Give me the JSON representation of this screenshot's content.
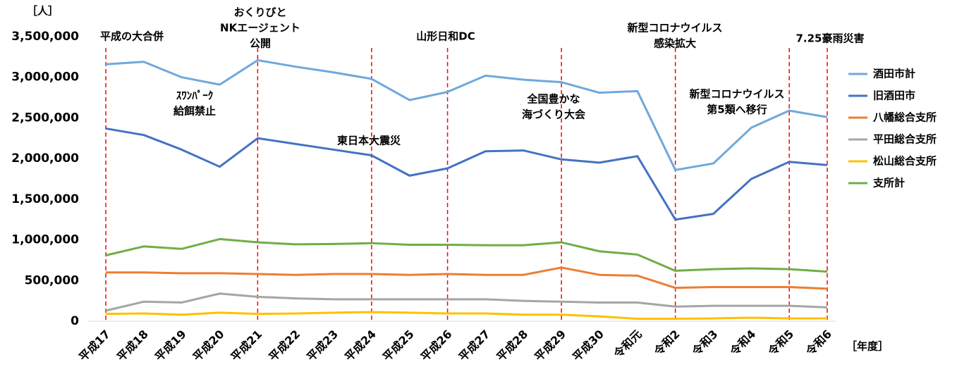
{
  "chart_data": {
    "type": "line",
    "y_axis_label": "［人］",
    "x_axis_label": "［年度］",
    "categories": [
      "平成17",
      "平成18",
      "平成19",
      "平成20",
      "平成21",
      "平成22",
      "平成23",
      "平成24",
      "平成25",
      "平成26",
      "平成27",
      "平成28",
      "平成29",
      "平成30",
      "令和元",
      "令和2",
      "令和3",
      "令和4",
      "令和5",
      "令和6"
    ],
    "series": [
      {
        "name": "酒田市計",
        "color": "#6fa8dc",
        "values": [
          3160000,
          3190000,
          3000000,
          2910000,
          3210000,
          3130000,
          3060000,
          2980000,
          2720000,
          2820000,
          3020000,
          2970000,
          2940000,
          2810000,
          2830000,
          1860000,
          1940000,
          2380000,
          2590000,
          2510000
        ]
      },
      {
        "name": "旧酒田市",
        "color": "#4472c4",
        "values": [
          2370000,
          2290000,
          2110000,
          1900000,
          2250000,
          2180000,
          2110000,
          2040000,
          1790000,
          1880000,
          2090000,
          2100000,
          1990000,
          1950000,
          2030000,
          1250000,
          1320000,
          1750000,
          1960000,
          1920000
        ]
      },
      {
        "name": "八幡総合支所",
        "color": "#ed7d31",
        "values": [
          600000,
          600000,
          590000,
          590000,
          580000,
          570000,
          580000,
          580000,
          570000,
          580000,
          570000,
          570000,
          660000,
          570000,
          560000,
          410000,
          420000,
          420000,
          420000,
          400000
        ]
      },
      {
        "name": "平田総合支所",
        "color": "#a5a5a5",
        "values": [
          130000,
          240000,
          230000,
          340000,
          300000,
          280000,
          270000,
          270000,
          270000,
          270000,
          270000,
          250000,
          240000,
          230000,
          230000,
          180000,
          190000,
          190000,
          190000,
          170000
        ]
      },
      {
        "name": "松山総合支所",
        "color": "#ffc000",
        "values": [
          90000,
          95000,
          80000,
          105000,
          90000,
          95000,
          105000,
          113000,
          105000,
          95000,
          95000,
          80000,
          80000,
          60000,
          30000,
          30000,
          35000,
          43000,
          35000,
          35000
        ]
      },
      {
        "name": "支所計",
        "color": "#70ad47",
        "values": [
          810000,
          920000,
          890000,
          1010000,
          970000,
          945000,
          950000,
          960000,
          940000,
          940000,
          935000,
          935000,
          970000,
          860000,
          820000,
          620000,
          640000,
          650000,
          640000,
          610000
        ]
      }
    ],
    "ylim": [
      0,
      3500000
    ],
    "yticks": [
      0,
      {
        "value": 500000,
        "label": "500,000"
      },
      {
        "value": 1000000,
        "label": "1,000,000"
      },
      {
        "value": 1500000,
        "label": "1,500,000"
      },
      {
        "value": 2000000,
        "label": "2,000,000"
      },
      {
        "value": 2500000,
        "label": "2,500,000"
      },
      {
        "value": 3000000,
        "label": "3,000,000"
      },
      {
        "value": 3500000,
        "label": "3,500,000"
      }
    ],
    "annotations": [
      {
        "text": [
          "平成の大合併"
        ]
      },
      {
        "text": [
          "おくりびと",
          "NKエージェント",
          "公開"
        ]
      },
      {
        "text": [
          "ｽﾜﾝﾊﾟｰｸ",
          "給餌禁止"
        ]
      },
      {
        "text": [
          "東日本大震災"
        ]
      },
      {
        "text": [
          "山形日和DC"
        ]
      },
      {
        "text": [
          "全国豊かな",
          "海づくり大会"
        ]
      },
      {
        "text": [
          "新型コロナウイルス",
          "感染拡大"
        ]
      },
      {
        "text": [
          "新型コロナウイルス",
          "第5類へ移行"
        ]
      },
      {
        "text": [
          "7.25豪雨災害"
        ]
      }
    ],
    "legend": "right"
  }
}
